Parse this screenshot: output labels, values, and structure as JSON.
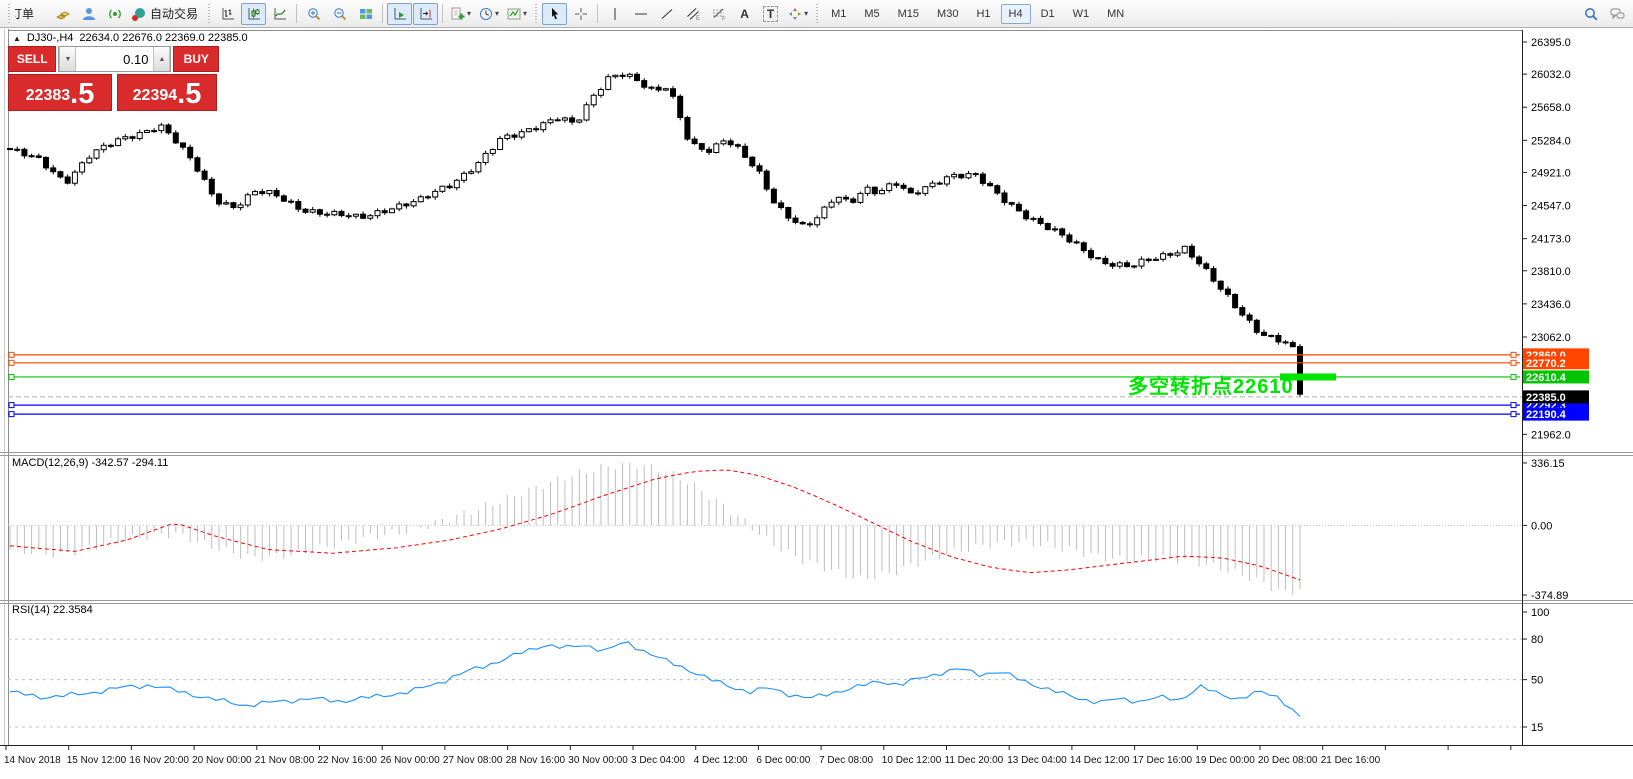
{
  "toolbar": {
    "new_order_label": "订单",
    "autotrading_label": "自动交易",
    "timeframes": [
      "M1",
      "M5",
      "M15",
      "M30",
      "H1",
      "H4",
      "D1",
      "W1",
      "MN"
    ],
    "active_timeframe": "H4",
    "icons": {
      "dropdown_arrow": "▾",
      "text_tool": "A",
      "label_tool": "T",
      "spinner_up": "▲",
      "spinner_down": "▼"
    }
  },
  "chart": {
    "collapse_icon": "▲",
    "title": "DJ30-,H4",
    "ohlc_text": "22634.0 22676.0 22369.0 22385.0"
  },
  "trade_panel": {
    "sell_label": "SELL",
    "buy_label": "BUY",
    "volume": "0.10",
    "sell_price": "22383",
    "sell_price_fraction": ".5",
    "buy_price": "22394",
    "buy_price_fraction": ".5"
  },
  "chart_data": [
    {
      "type": "candlestick",
      "symbol": "DJ30-",
      "timeframe": "H4",
      "ohlc": {
        "open": 22634.0,
        "high": 22676.0,
        "low": 22369.0,
        "close": 22385.0
      },
      "bid": 22383.5,
      "ask": 22394.5,
      "ylim": [
        21962.0,
        26450.0
      ],
      "y_ticks": [
        "26395.0",
        "26032.0",
        "25658.0",
        "25284.0",
        "24921.0",
        "24547.0",
        "24173.0",
        "23810.0",
        "23436.0",
        "23062.0",
        "21962.0"
      ],
      "x_labels": [
        "14 Nov 2018",
        "15 Nov 12:00",
        "16 Nov 20:00",
        "20 Nov 00:00",
        "21 Nov 08:00",
        "22 Nov 16:00",
        "26 Nov 00:00",
        "27 Nov 08:00",
        "28 Nov 16:00",
        "30 Nov 00:00",
        "3 Dec 04:00",
        "4 Dec 12:00",
        "6 Dec 00:00",
        "7 Dec 08:00",
        "10 Dec 12:00",
        "11 Dec 20:00",
        "13 Dec 04:00",
        "14 Dec 12:00",
        "17 Dec 16:00",
        "19 Dec 00:00",
        "20 Dec 08:00",
        "21 Dec 16:00"
      ],
      "horizontal_lines": [
        {
          "price": 22860.0,
          "label": "22860.0",
          "color": "#FF4500"
        },
        {
          "price": 22770.2,
          "label": "22770.2",
          "color": "#FF4500"
        },
        {
          "price": 22610.4,
          "label": "22610.4",
          "color": "#00C400"
        },
        {
          "price": 22292.3,
          "label": "22292.3",
          "color": "#0000FF"
        },
        {
          "price": 22190.4,
          "label": "22190.4",
          "color": "#0000FF"
        }
      ],
      "bid_line": {
        "price": 22385.0,
        "label": "22385.0",
        "line_color": "#ADADAD",
        "label_bg": "#000000"
      },
      "annotation": {
        "text": "多空转折点22610",
        "color": "#00E400"
      },
      "highlight_segment": {
        "price": 22610.0,
        "color": "#00E400"
      },
      "candles": {
        "count": 180,
        "up_fill": "#FFFFFF",
        "down_fill": "#000000",
        "outline": "#000000",
        "path_anchors": [
          [
            0,
            25180
          ],
          [
            0.023,
            25050
          ],
          [
            0.043,
            24820
          ],
          [
            0.062,
            25120
          ],
          [
            0.085,
            25280
          ],
          [
            0.109,
            25420
          ],
          [
            0.116,
            25470
          ],
          [
            0.128,
            25280
          ],
          [
            0.143,
            25000
          ],
          [
            0.159,
            24620
          ],
          [
            0.174,
            24540
          ],
          [
            0.19,
            24700
          ],
          [
            0.205,
            24660
          ],
          [
            0.225,
            24520
          ],
          [
            0.248,
            24450
          ],
          [
            0.271,
            24400
          ],
          [
            0.295,
            24530
          ],
          [
            0.318,
            24600
          ],
          [
            0.341,
            24780
          ],
          [
            0.364,
            25050
          ],
          [
            0.38,
            25280
          ],
          [
            0.395,
            25350
          ],
          [
            0.415,
            25500
          ],
          [
            0.426,
            25560
          ],
          [
            0.438,
            25450
          ],
          [
            0.453,
            25780
          ],
          [
            0.465,
            26010
          ],
          [
            0.477,
            26060
          ],
          [
            0.488,
            25950
          ],
          [
            0.5,
            25820
          ],
          [
            0.51,
            25880
          ],
          [
            0.519,
            25560
          ],
          [
            0.527,
            25250
          ],
          [
            0.543,
            25180
          ],
          [
            0.554,
            25300
          ],
          [
            0.566,
            25150
          ],
          [
            0.581,
            24900
          ],
          [
            0.593,
            24580
          ],
          [
            0.605,
            24420
          ],
          [
            0.616,
            24300
          ],
          [
            0.628,
            24420
          ],
          [
            0.64,
            24650
          ],
          [
            0.651,
            24580
          ],
          [
            0.663,
            24760
          ],
          [
            0.674,
            24700
          ],
          [
            0.686,
            24800
          ],
          [
            0.698,
            24650
          ],
          [
            0.709,
            24750
          ],
          [
            0.729,
            24900
          ],
          [
            0.748,
            24880
          ],
          [
            0.767,
            24650
          ],
          [
            0.787,
            24450
          ],
          [
            0.806,
            24280
          ],
          [
            0.826,
            24100
          ],
          [
            0.845,
            23930
          ],
          [
            0.868,
            23850
          ],
          [
            0.891,
            23960
          ],
          [
            0.911,
            24080
          ],
          [
            0.922,
            23900
          ],
          [
            0.938,
            23600
          ],
          [
            0.953,
            23350
          ],
          [
            0.969,
            23120
          ],
          [
            0.984,
            23030
          ],
          [
            0.994,
            22950
          ],
          [
            1,
            22420
          ]
        ]
      }
    },
    {
      "type": "macd",
      "label": "MACD(12,26,9)",
      "values_text": "-342.57 -294.11",
      "y_ticks": [
        "336.15",
        "0.00",
        "-374.89"
      ],
      "histogram_color": "#BEBEBE",
      "signal_color": "#FF0000",
      "histogram_anchors": [
        [
          0,
          -130
        ],
        [
          0.039,
          -160
        ],
        [
          0.078,
          -90
        ],
        [
          0.116,
          -50
        ],
        [
          0.128,
          -45
        ],
        [
          0.155,
          -110
        ],
        [
          0.186,
          -175
        ],
        [
          0.217,
          -160
        ],
        [
          0.248,
          -110
        ],
        [
          0.279,
          -60
        ],
        [
          0.31,
          -30
        ],
        [
          0.333,
          20
        ],
        [
          0.364,
          90
        ],
        [
          0.395,
          170
        ],
        [
          0.426,
          250
        ],
        [
          0.457,
          310
        ],
        [
          0.481,
          336
        ],
        [
          0.504,
          300
        ],
        [
          0.527,
          230
        ],
        [
          0.55,
          120
        ],
        [
          0.57,
          20
        ],
        [
          0.589,
          -90
        ],
        [
          0.612,
          -180
        ],
        [
          0.636,
          -240
        ],
        [
          0.659,
          -290
        ],
        [
          0.682,
          -260
        ],
        [
          0.705,
          -200
        ],
        [
          0.729,
          -150
        ],
        [
          0.752,
          -110
        ],
        [
          0.775,
          -90
        ],
        [
          0.798,
          -100
        ],
        [
          0.822,
          -130
        ],
        [
          0.845,
          -170
        ],
        [
          0.868,
          -190
        ],
        [
          0.891,
          -175
        ],
        [
          0.915,
          -190
        ],
        [
          0.938,
          -230
        ],
        [
          0.961,
          -280
        ],
        [
          0.985,
          -355
        ],
        [
          0.993,
          -374.89
        ],
        [
          1,
          -342.57
        ]
      ],
      "signal_anchors": [
        [
          0,
          -110
        ],
        [
          0.05,
          -140
        ],
        [
          0.09,
          -80
        ],
        [
          0.128,
          15
        ],
        [
          0.16,
          -60
        ],
        [
          0.2,
          -130
        ],
        [
          0.25,
          -150
        ],
        [
          0.3,
          -120
        ],
        [
          0.34,
          -80
        ],
        [
          0.38,
          -20
        ],
        [
          0.42,
          60
        ],
        [
          0.46,
          160
        ],
        [
          0.5,
          250
        ],
        [
          0.53,
          290
        ],
        [
          0.555,
          300
        ],
        [
          0.58,
          270
        ],
        [
          0.61,
          200
        ],
        [
          0.64,
          110
        ],
        [
          0.67,
          10
        ],
        [
          0.7,
          -90
        ],
        [
          0.73,
          -170
        ],
        [
          0.76,
          -225
        ],
        [
          0.79,
          -255
        ],
        [
          0.82,
          -240
        ],
        [
          0.85,
          -215
        ],
        [
          0.88,
          -190
        ],
        [
          0.91,
          -165
        ],
        [
          0.94,
          -175
        ],
        [
          0.97,
          -220
        ],
        [
          1,
          -294.11
        ]
      ]
    },
    {
      "type": "rsi",
      "label": "RSI(14)",
      "value_text": "22.3584",
      "y_ticks": [
        "100",
        "80",
        "50",
        "15"
      ],
      "levels": [
        80,
        50,
        15
      ],
      "line_color": "#1E90FF",
      "line_anchors": [
        [
          0,
          41
        ],
        [
          0.023,
          37
        ],
        [
          0.054,
          39
        ],
        [
          0.085,
          44
        ],
        [
          0.109,
          46
        ],
        [
          0.128,
          42
        ],
        [
          0.155,
          36
        ],
        [
          0.182,
          31
        ],
        [
          0.21,
          34
        ],
        [
          0.233,
          36
        ],
        [
          0.256,
          34
        ],
        [
          0.287,
          38
        ],
        [
          0.31,
          41
        ],
        [
          0.333,
          48
        ],
        [
          0.357,
          57
        ],
        [
          0.38,
          64
        ],
        [
          0.4,
          71
        ],
        [
          0.415,
          76
        ],
        [
          0.43,
          73
        ],
        [
          0.446,
          76
        ],
        [
          0.461,
          71
        ],
        [
          0.477,
          78
        ],
        [
          0.492,
          71
        ],
        [
          0.508,
          64
        ],
        [
          0.527,
          57
        ],
        [
          0.543,
          50
        ],
        [
          0.558,
          45
        ],
        [
          0.574,
          41
        ],
        [
          0.589,
          44
        ],
        [
          0.605,
          39
        ],
        [
          0.62,
          36
        ],
        [
          0.64,
          41
        ],
        [
          0.659,
          45
        ],
        [
          0.674,
          49
        ],
        [
          0.69,
          46
        ],
        [
          0.705,
          51
        ],
        [
          0.721,
          55
        ],
        [
          0.736,
          58
        ],
        [
          0.752,
          54
        ],
        [
          0.767,
          56
        ],
        [
          0.783,
          50
        ],
        [
          0.798,
          45
        ],
        [
          0.814,
          40
        ],
        [
          0.83,
          36
        ],
        [
          0.845,
          33
        ],
        [
          0.86,
          36
        ],
        [
          0.876,
          34
        ],
        [
          0.891,
          37
        ],
        [
          0.907,
          35
        ],
        [
          0.922,
          45
        ],
        [
          0.938,
          39
        ],
        [
          0.953,
          36
        ],
        [
          0.969,
          41
        ],
        [
          0.984,
          37
        ],
        [
          1,
          22.36
        ]
      ]
    }
  ]
}
